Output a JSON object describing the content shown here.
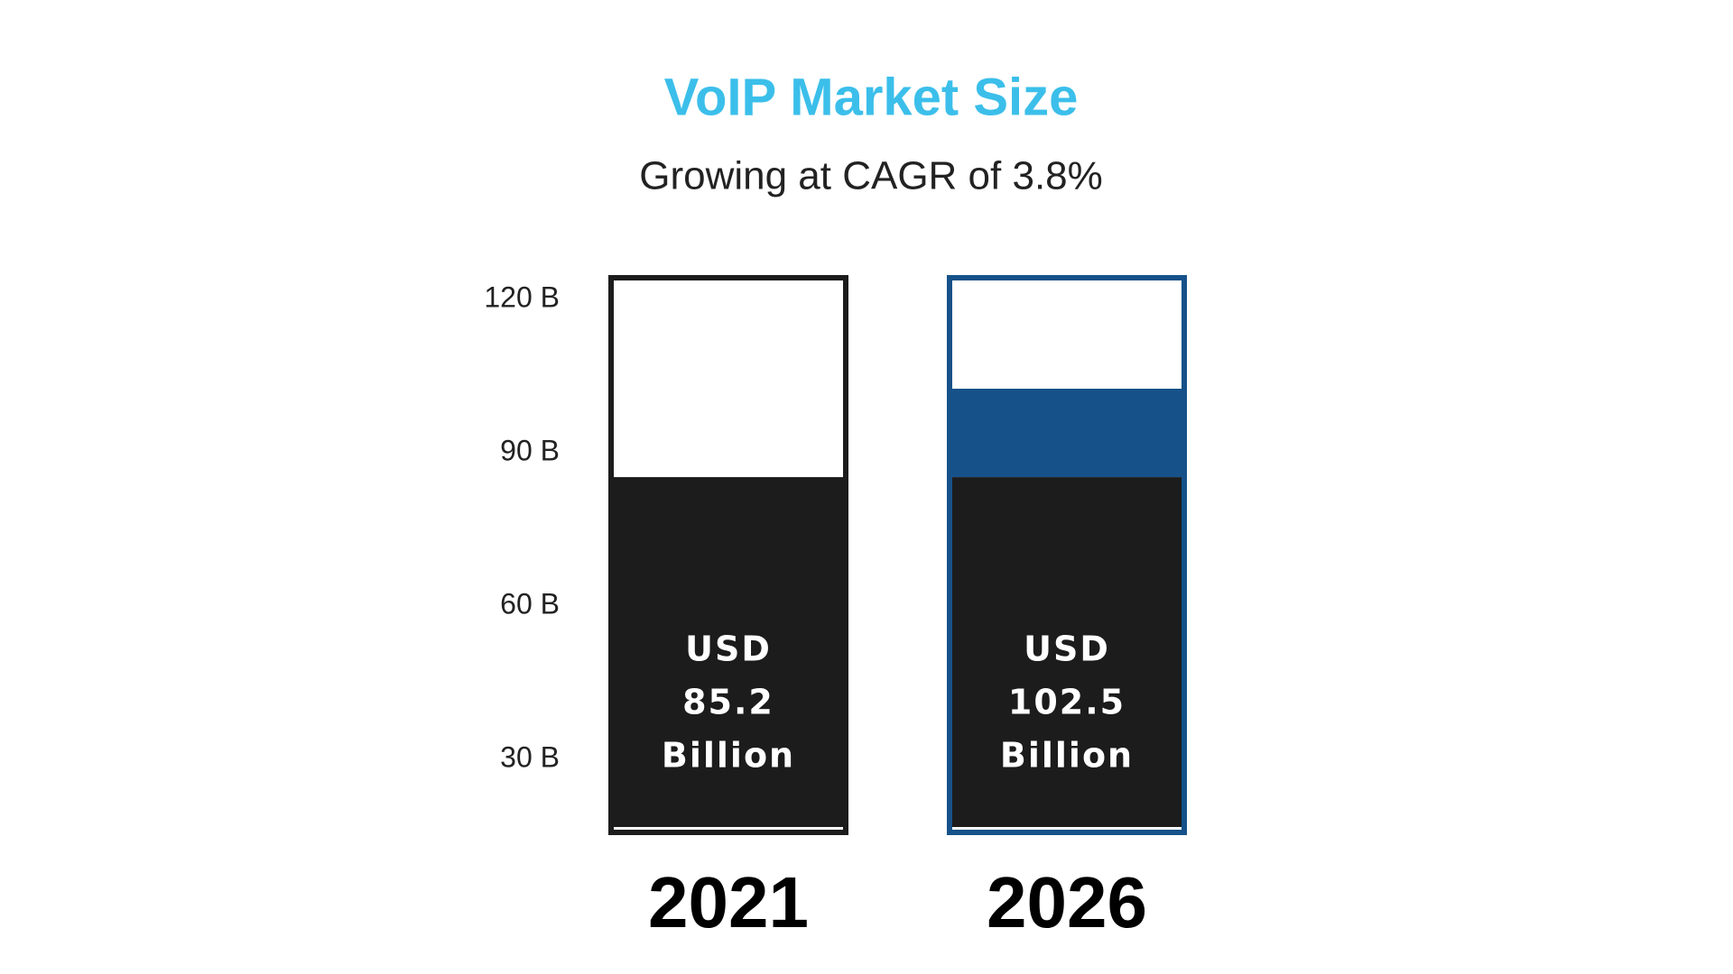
{
  "chart_data": {
    "type": "bar",
    "title": "VoIP Market Size",
    "subtitle": "Growing at CAGR of 3.8%",
    "categories": [
      "2021",
      "2026"
    ],
    "values": [
      85.2,
      102.5
    ],
    "value_labels": [
      "USD 85.2 Billion",
      "USD 102.5 Billion"
    ],
    "colors": [
      "#1c1c1c",
      "#165289"
    ],
    "ylim": [
      15.7,
      124.2
    ],
    "yticks": [
      {
        "value": 30,
        "label": "30 B"
      },
      {
        "value": 60,
        "label": "60 B"
      },
      {
        "value": 90,
        "label": "90 B"
      },
      {
        "value": 120,
        "label": "120 B"
      }
    ],
    "grid": false
  }
}
